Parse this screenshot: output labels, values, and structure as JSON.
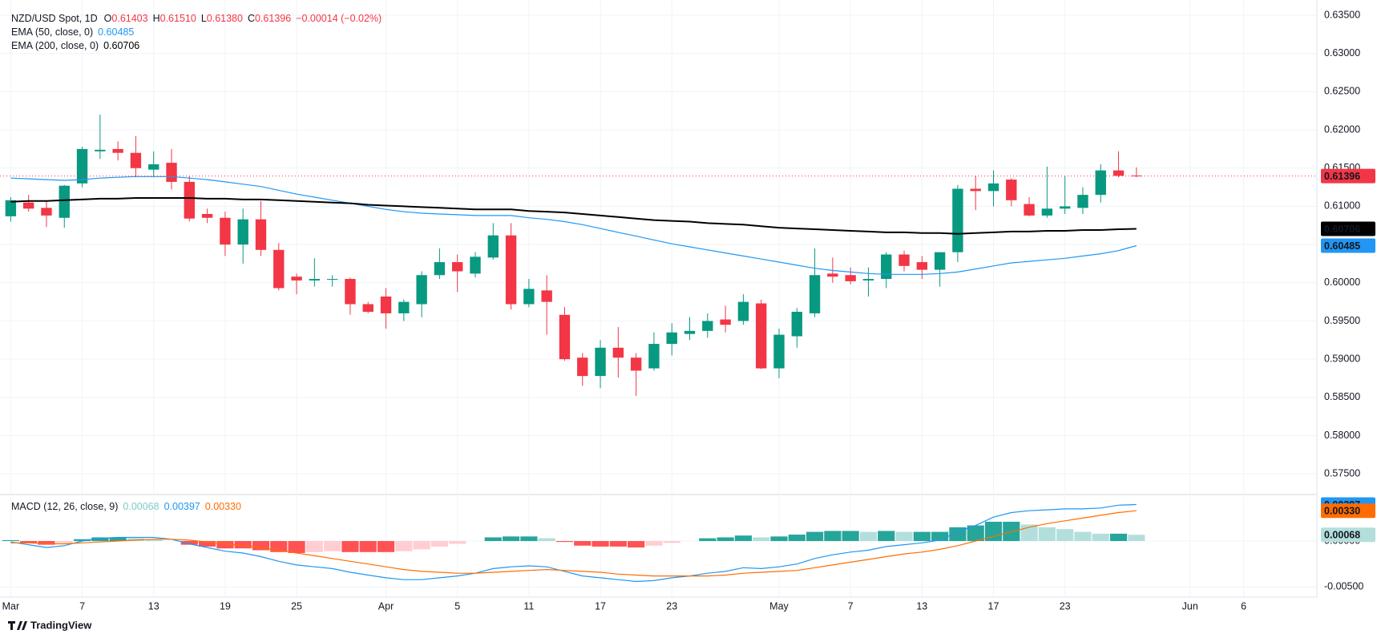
{
  "chart_data": [
    {
      "type": "candlestick",
      "symbol": "NZD/USD Spot, 1D",
      "legend_keys": [
        "O",
        "H",
        "L",
        "C"
      ],
      "legend_values": [
        "0.61403",
        "0.61510",
        "0.61380",
        "0.61396"
      ],
      "change_label": "−0.00014 (−0.02%)",
      "open": [
        0.6087,
        0.6105,
        0.6098,
        0.6085,
        0.613,
        0.6172,
        0.6175,
        0.617,
        0.6148,
        0.6157,
        0.6132,
        0.609,
        0.6085,
        0.605,
        0.6083,
        0.6043,
        0.6008,
        0.6003,
        0.6004,
        0.6005,
        0.5972,
        0.5982,
        0.596,
        0.5972,
        0.601,
        0.6027,
        0.6012,
        0.6033,
        0.6062,
        0.5972,
        0.599,
        0.5958,
        0.5902,
        0.5878,
        0.5915,
        0.5902,
        0.5888,
        0.592,
        0.5933,
        0.5937,
        0.5952,
        0.595,
        0.5973,
        0.5888,
        0.593,
        0.596,
        0.6012,
        0.601,
        0.6003,
        0.6005,
        0.6037,
        0.6027,
        0.6017,
        0.604,
        0.6123,
        0.612,
        0.6135,
        0.6103,
        0.6088,
        0.6097,
        0.6098,
        0.6115,
        0.6147,
        0.61403
      ],
      "high": [
        0.6112,
        0.6115,
        0.6108,
        0.6128,
        0.6178,
        0.622,
        0.6185,
        0.6192,
        0.6172,
        0.6175,
        0.614,
        0.6097,
        0.6093,
        0.6097,
        0.6107,
        0.6052,
        0.6012,
        0.6032,
        0.601,
        0.6007,
        0.5975,
        0.5993,
        0.5978,
        0.6015,
        0.6045,
        0.6037,
        0.604,
        0.6078,
        0.6078,
        0.6005,
        0.601,
        0.5968,
        0.5908,
        0.5925,
        0.5942,
        0.5908,
        0.5935,
        0.5947,
        0.5955,
        0.596,
        0.597,
        0.5985,
        0.5978,
        0.594,
        0.5967,
        0.6045,
        0.6033,
        0.602,
        0.602,
        0.604,
        0.6042,
        0.6035,
        0.604,
        0.6128,
        0.614,
        0.6147,
        0.6137,
        0.6112,
        0.6152,
        0.614,
        0.6125,
        0.6155,
        0.6172,
        0.6151
      ],
      "low": [
        0.608,
        0.6093,
        0.6073,
        0.6072,
        0.6125,
        0.6162,
        0.616,
        0.6138,
        0.6138,
        0.6122,
        0.608,
        0.6078,
        0.6035,
        0.6025,
        0.6035,
        0.599,
        0.5985,
        0.5995,
        0.5995,
        0.5958,
        0.596,
        0.594,
        0.595,
        0.5955,
        0.6005,
        0.5988,
        0.6007,
        0.603,
        0.5965,
        0.5968,
        0.5932,
        0.5898,
        0.5865,
        0.5862,
        0.5876,
        0.5852,
        0.5885,
        0.5905,
        0.5925,
        0.5928,
        0.5935,
        0.5945,
        0.5887,
        0.5875,
        0.5915,
        0.5955,
        0.6,
        0.5998,
        0.5982,
        0.5993,
        0.6015,
        0.6005,
        0.5995,
        0.6027,
        0.6095,
        0.61,
        0.61,
        0.6087,
        0.6085,
        0.609,
        0.609,
        0.6105,
        0.6138,
        0.6138
      ],
      "close": [
        0.6108,
        0.6097,
        0.6088,
        0.6127,
        0.6175,
        0.6174,
        0.617,
        0.615,
        0.6155,
        0.6132,
        0.6084,
        0.6085,
        0.605,
        0.6083,
        0.6043,
        0.5993,
        0.6003,
        0.6005,
        0.6005,
        0.5972,
        0.5962,
        0.596,
        0.5975,
        0.601,
        0.6027,
        0.6015,
        0.6034,
        0.6062,
        0.5972,
        0.5992,
        0.5975,
        0.59,
        0.5878,
        0.5915,
        0.5902,
        0.5885,
        0.592,
        0.5935,
        0.5937,
        0.595,
        0.5945,
        0.5975,
        0.5888,
        0.5932,
        0.5962,
        0.601,
        0.6008,
        0.6002,
        0.6005,
        0.6037,
        0.6022,
        0.6017,
        0.604,
        0.6123,
        0.612,
        0.613,
        0.6108,
        0.6088,
        0.6097,
        0.61,
        0.6115,
        0.6147,
        0.614,
        0.61396
      ],
      "up_color": "#089981",
      "down_color": "#f23645",
      "overlays": [
        {
          "name": "EMA (50, close, 0)",
          "color": "#2196f3",
          "values": [
            0.6137,
            0.6136,
            0.6135,
            0.6134,
            0.6135,
            0.6137,
            0.6138,
            0.6139,
            0.6139,
            0.6139,
            0.6137,
            0.6135,
            0.6132,
            0.6129,
            0.6126,
            0.6121,
            0.6116,
            0.6112,
            0.6108,
            0.6104,
            0.61,
            0.6096,
            0.6093,
            0.6091,
            0.609,
            0.6089,
            0.6088,
            0.6088,
            0.6088,
            0.6085,
            0.6083,
            0.608,
            0.6076,
            0.6071,
            0.6066,
            0.6061,
            0.6056,
            0.6051,
            0.6047,
            0.6043,
            0.6039,
            0.6035,
            0.6031,
            0.6027,
            0.6023,
            0.6019,
            0.6016,
            0.6014,
            0.6012,
            0.6011,
            0.6011,
            0.6011,
            0.6012,
            0.6014,
            0.6018,
            0.6022,
            0.6026,
            0.6028,
            0.603,
            0.6032,
            0.6035,
            0.6038,
            0.6042,
            0.60485
          ]
        },
        {
          "name": "EMA (200, close, 0)",
          "color": "#000000",
          "values": [
            0.6106,
            0.6107,
            0.6107,
            0.6108,
            0.6109,
            0.611,
            0.611,
            0.6111,
            0.6111,
            0.6111,
            0.6111,
            0.611,
            0.611,
            0.6109,
            0.6109,
            0.6108,
            0.6107,
            0.6106,
            0.6105,
            0.6104,
            0.6102,
            0.6101,
            0.61,
            0.6099,
            0.6098,
            0.6097,
            0.6096,
            0.6096,
            0.6096,
            0.6094,
            0.6093,
            0.6092,
            0.609,
            0.6088,
            0.6086,
            0.6084,
            0.6082,
            0.6081,
            0.608,
            0.6078,
            0.6077,
            0.6076,
            0.6074,
            0.6072,
            0.6071,
            0.607,
            0.6069,
            0.6068,
            0.6067,
            0.6066,
            0.6066,
            0.6065,
            0.6065,
            0.6064,
            0.6065,
            0.6066,
            0.6067,
            0.6067,
            0.6068,
            0.6068,
            0.6069,
            0.6069,
            0.607,
            0.60706
          ]
        }
      ],
      "ylim": [
        0.5725,
        0.637
      ],
      "yticks": [
        {
          "value": 0.575,
          "label": "0.57500"
        },
        {
          "value": 0.58,
          "label": "0.58000"
        },
        {
          "value": 0.585,
          "label": "0.58500"
        },
        {
          "value": 0.59,
          "label": "0.59000"
        },
        {
          "value": 0.595,
          "label": "0.59500"
        },
        {
          "value": 0.6,
          "label": "0.60000"
        },
        {
          "value": 0.605,
          "label": "0.60500"
        },
        {
          "value": 0.61,
          "label": "0.61000"
        },
        {
          "value": 0.615,
          "label": "0.61500"
        },
        {
          "value": 0.62,
          "label": "0.62000"
        },
        {
          "value": 0.625,
          "label": "0.62500"
        },
        {
          "value": 0.63,
          "label": "0.63000"
        },
        {
          "value": 0.635,
          "label": "0.63500"
        }
      ],
      "xlim": [
        -0.6,
        73.1
      ],
      "grid": true
    },
    {
      "type": "macd",
      "title": "MACD (12, 26, close, 9)",
      "histogram": {
        "colors": {
          "rising_positive": "#26a69a",
          "falling_positive": "#b2dfdb",
          "rising_negative": "#ffcdd2",
          "falling_negative": "#ff5252"
        },
        "values": [
          0.0001,
          -0.0002,
          -0.0004,
          -0.0002,
          0.0002,
          0.0004,
          0.0004,
          0.0003,
          0.0002,
          0.0,
          -0.0004,
          -0.0006,
          -0.0008,
          -0.0008,
          -0.001,
          -0.0012,
          -0.0013,
          -0.0012,
          -0.0011,
          -0.0012,
          -0.0012,
          -0.0012,
          -0.0011,
          -0.0009,
          -0.0006,
          -0.0003,
          0.0,
          0.0004,
          0.0005,
          0.0005,
          0.0003,
          -0.0001,
          -0.0005,
          -0.0006,
          -0.0006,
          -0.0007,
          -0.0005,
          -0.0002,
          0.0,
          0.0003,
          0.0004,
          0.0006,
          0.0004,
          0.0005,
          0.0007,
          0.001,
          0.0011,
          0.0011,
          0.001,
          0.0011,
          0.001,
          0.001,
          0.001,
          0.0015,
          0.0017,
          0.0021,
          0.0021,
          0.0018,
          0.0015,
          0.0013,
          0.001,
          0.0008,
          0.0008,
          0.00068
        ]
      },
      "series": [
        {
          "color": "#2196f3",
          "values": [
            -0.0001,
            -0.0004,
            -0.0007,
            -0.0005,
            0.0,
            0.0003,
            0.0004,
            0.0004,
            0.0004,
            0.0002,
            -0.0003,
            -0.0007,
            -0.0011,
            -0.0013,
            -0.0017,
            -0.0022,
            -0.0026,
            -0.0028,
            -0.003,
            -0.0034,
            -0.0037,
            -0.004,
            -0.0042,
            -0.0042,
            -0.004,
            -0.0038,
            -0.0035,
            -0.003,
            -0.0028,
            -0.0027,
            -0.0028,
            -0.0033,
            -0.0038,
            -0.004,
            -0.0042,
            -0.0044,
            -0.0043,
            -0.004,
            -0.0038,
            -0.0035,
            -0.0033,
            -0.0029,
            -0.003,
            -0.0028,
            -0.0025,
            -0.0019,
            -0.0015,
            -0.0012,
            -0.001,
            -0.0006,
            -0.0004,
            -0.0002,
            0.0001,
            0.001,
            0.0017,
            0.0026,
            0.0031,
            0.0033,
            0.0034,
            0.0035,
            0.0035,
            0.0036,
            0.0039,
            0.00397
          ]
        },
        {
          "color": "#ff6d00",
          "last_label": "0.00330",
          "values": [
            -0.0002,
            -0.0002,
            -0.0003,
            -0.0003,
            -0.0002,
            -0.0001,
            0.0,
            0.0001,
            0.0002,
            0.0002,
            0.0001,
            -0.0001,
            -0.0003,
            -0.0005,
            -0.0007,
            -0.001,
            -0.0013,
            -0.0016,
            -0.0019,
            -0.0022,
            -0.0025,
            -0.0028,
            -0.0031,
            -0.0033,
            -0.0034,
            -0.0035,
            -0.0035,
            -0.0034,
            -0.0033,
            -0.0032,
            -0.0031,
            -0.0032,
            -0.0033,
            -0.0034,
            -0.0036,
            -0.0037,
            -0.0038,
            -0.0038,
            -0.0038,
            -0.0038,
            -0.0037,
            -0.0035,
            -0.0034,
            -0.0033,
            -0.0032,
            -0.0029,
            -0.0026,
            -0.0023,
            -0.002,
            -0.0017,
            -0.0014,
            -0.0012,
            -0.0009,
            -0.0005,
            0.0,
            0.0005,
            0.001,
            0.0015,
            0.0019,
            0.0022,
            0.0025,
            0.0028,
            0.0031,
            0.0033
          ]
        }
      ],
      "ylim": [
        -0.0061,
        0.0048
      ],
      "yticks": [
        {
          "value": 0,
          "label": "0.00000"
        },
        {
          "value": -0.005,
          "label": "-0.00500"
        }
      ],
      "xlim": [
        -0.6,
        73.1
      ],
      "xticks": [
        {
          "value": 0,
          "label": "Mar"
        },
        {
          "value": 4,
          "label": "7"
        },
        {
          "value": 8,
          "label": "13"
        },
        {
          "value": 12,
          "label": "19"
        },
        {
          "value": 16,
          "label": "25"
        },
        {
          "value": 21,
          "label": "Apr"
        },
        {
          "value": 25,
          "label": "5"
        },
        {
          "value": 29,
          "label": "11"
        },
        {
          "value": 33,
          "label": "17"
        },
        {
          "value": 37,
          "label": "23"
        },
        {
          "value": 43,
          "label": "May"
        },
        {
          "value": 47,
          "label": "7"
        },
        {
          "value": 51,
          "label": "13"
        },
        {
          "value": 55,
          "label": "17"
        },
        {
          "value": 59,
          "label": "23"
        },
        {
          "value": 66,
          "label": "Jun"
        },
        {
          "value": 69,
          "label": "6"
        }
      ],
      "grid": true
    }
  ],
  "footer": {
    "brand": "TradingView"
  }
}
